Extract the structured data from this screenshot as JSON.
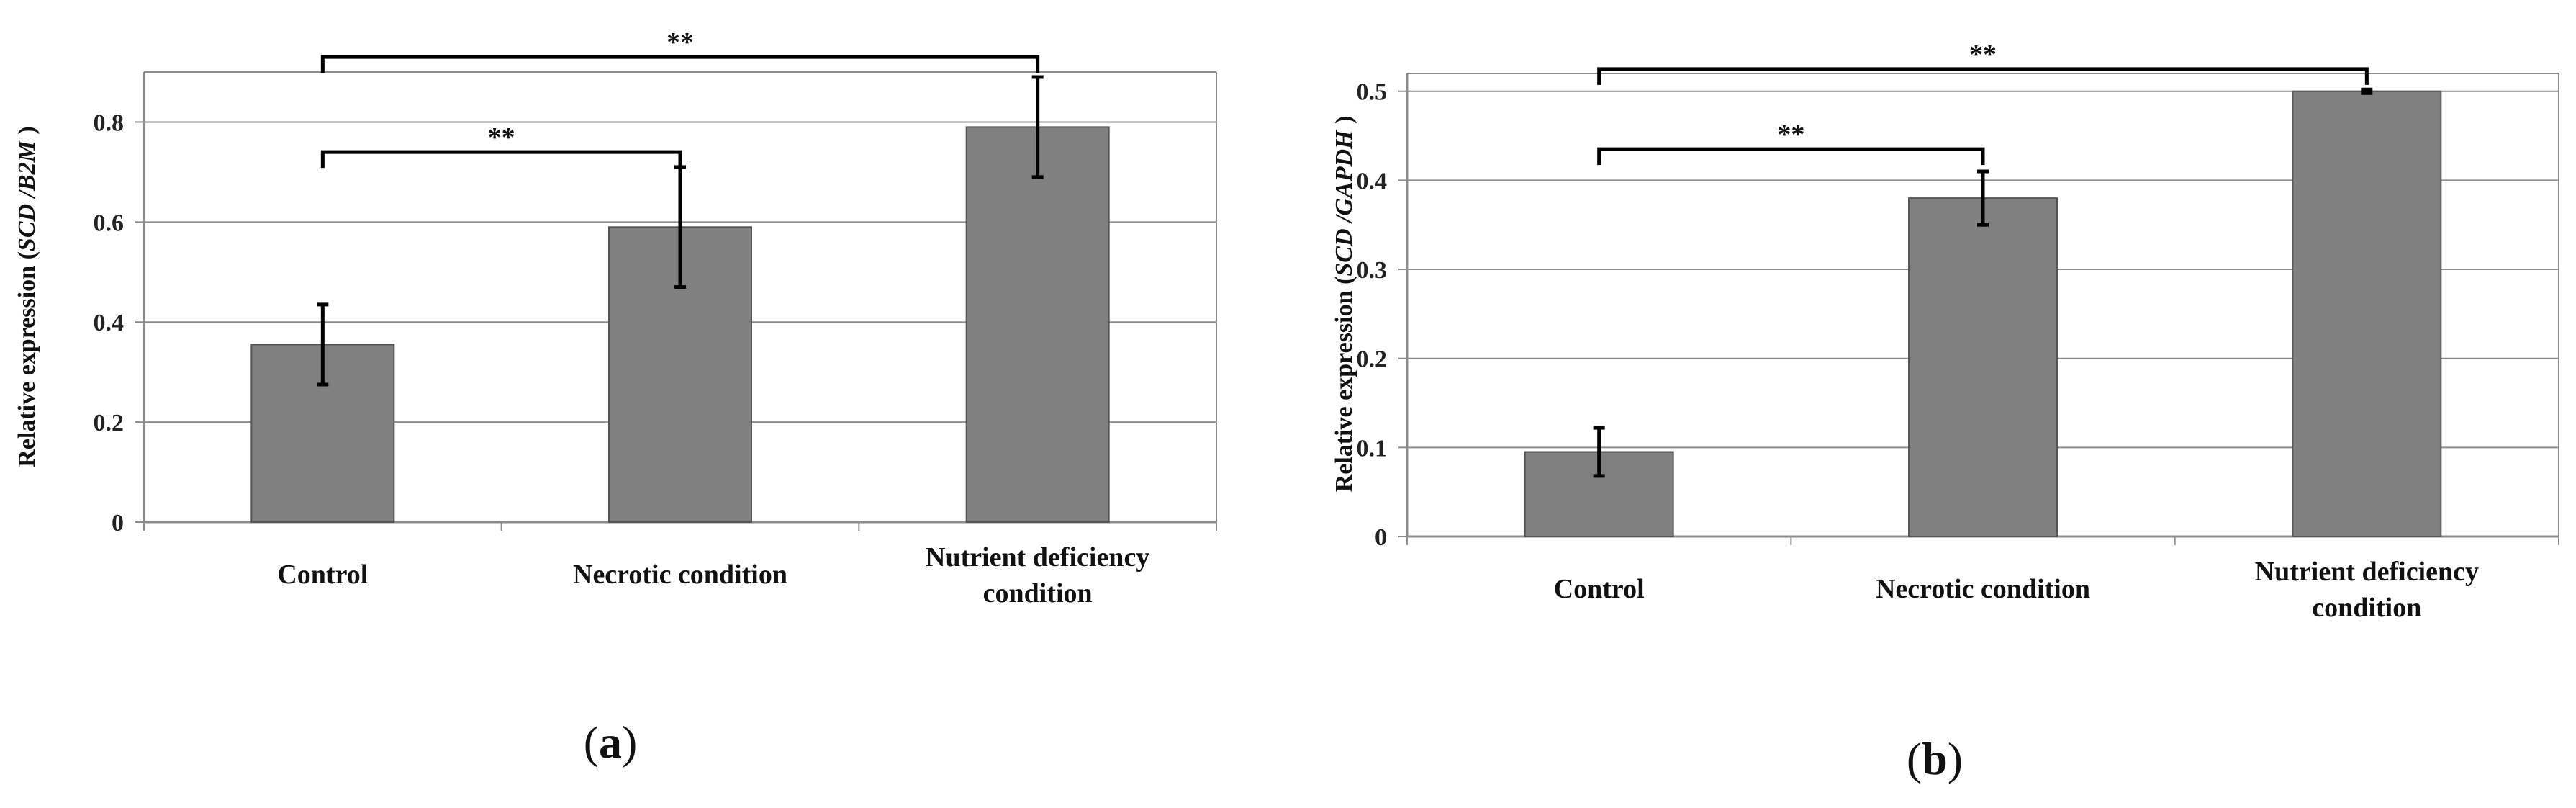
{
  "chart_data": [
    {
      "type": "bar",
      "panel_label": "a",
      "categories": [
        [
          "Control"
        ],
        [
          "Necrotic condition"
        ],
        [
          "Nutrient deficiency",
          "condition"
        ]
      ],
      "values": [
        0.355,
        0.59,
        0.79
      ],
      "errors": [
        0.08,
        0.12,
        0.1
      ],
      "ylabel_prefix": "Relative expression (",
      "ylabel_italic": "SCD /B2M",
      "ylabel_suffix": " )",
      "ylim": [
        0,
        0.9
      ],
      "yticks": [
        "0",
        "0.2",
        "0.4",
        "0.6",
        "0.8"
      ],
      "ytick_values": [
        0,
        0.2,
        0.4,
        0.6,
        0.8
      ],
      "grid": true,
      "significance": [
        {
          "from": 0,
          "to": 1,
          "label": "**",
          "level": 0.74
        },
        {
          "from": 0,
          "to": 2,
          "label": "**",
          "level": 0.93
        }
      ],
      "colors": {
        "bar": "#808080",
        "bar_edge": "#555555",
        "grid": "#8c8c8c",
        "axis": "#8c8c8c"
      }
    },
    {
      "type": "bar",
      "panel_label": "b",
      "categories": [
        [
          "Control"
        ],
        [
          "Necrotic condition"
        ],
        [
          "Nutrient deficiency",
          "condition"
        ]
      ],
      "values": [
        0.095,
        0.38,
        0.5
      ],
      "errors": [
        0.027,
        0.03,
        0.002
      ],
      "ylabel_prefix": "Relative expression (",
      "ylabel_italic": "SCD /GAPDH",
      "ylabel_suffix": " )",
      "ylim": [
        0,
        0.52
      ],
      "yticks": [
        "0",
        "0.1",
        "0.2",
        "0.3",
        "0.4",
        "0.5"
      ],
      "ytick_values": [
        0,
        0.1,
        0.2,
        0.3,
        0.4,
        0.5
      ],
      "grid": true,
      "significance": [
        {
          "from": 0,
          "to": 1,
          "label": "**",
          "level": 0.435
        },
        {
          "from": 0,
          "to": 2,
          "label": "**",
          "level": 0.525
        }
      ],
      "colors": {
        "bar": "#808080",
        "bar_edge": "#555555",
        "grid": "#8c8c8c",
        "axis": "#8c8c8c"
      }
    }
  ]
}
